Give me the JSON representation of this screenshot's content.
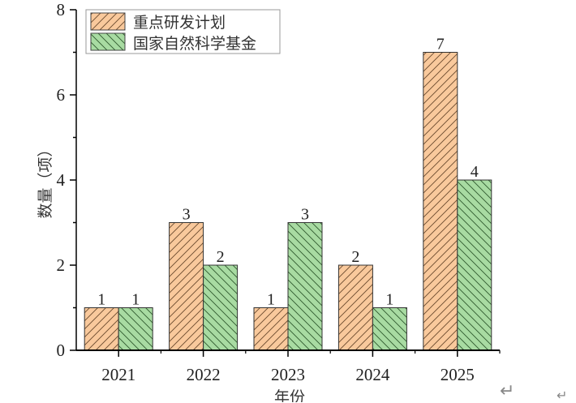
{
  "chart_data": {
    "type": "bar",
    "categories": [
      "2021",
      "2022",
      "2023",
      "2024",
      "2025"
    ],
    "series": [
      {
        "name": "重点研发计划",
        "values": [
          1,
          3,
          1,
          2,
          7
        ],
        "color": "#F9C99C",
        "hatch": "forward-diagonal"
      },
      {
        "name": "国家自然科学基金",
        "values": [
          1,
          2,
          3,
          1,
          4
        ],
        "color": "#A8DBA2",
        "hatch": "back-diagonal"
      }
    ],
    "title": "",
    "xlabel": "年份",
    "ylabel": "数量（项）",
    "ylim": [
      0,
      8
    ],
    "yticks": [
      0,
      2,
      4,
      6,
      8
    ],
    "grid": false,
    "legend": "top-left",
    "data_labels": true
  },
  "doc_marks": [
    "↵",
    "↵"
  ]
}
